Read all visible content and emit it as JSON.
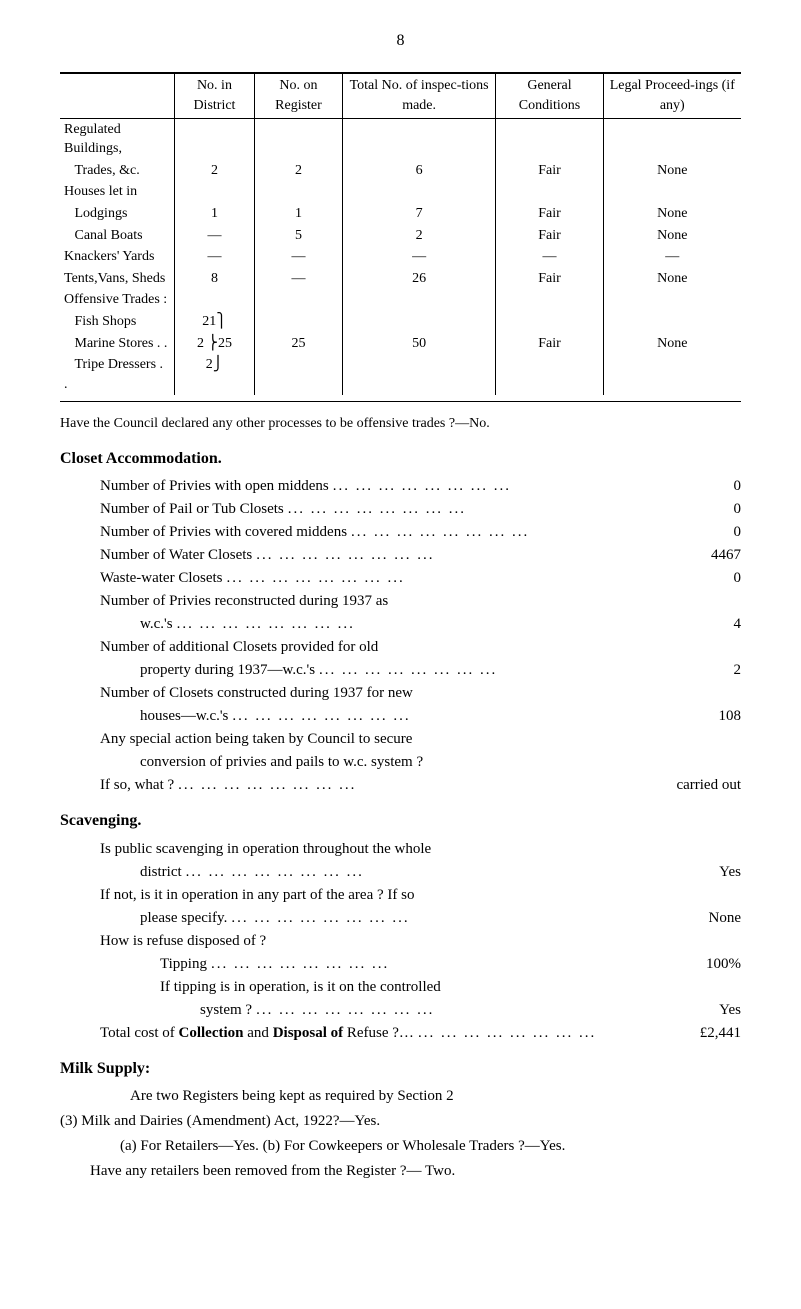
{
  "pageNumber": "8",
  "table": {
    "headers": [
      "",
      "No. in District",
      "No. on Register",
      "Total No. of inspec-tions made.",
      "General Conditions",
      "Legal Proceed-ings (if any)"
    ],
    "rows": [
      {
        "label": "Regulated Buildings,",
        "cells": [
          "",
          "",
          "",
          "",
          ""
        ]
      },
      {
        "label": "Trades, &c.",
        "indent": 1,
        "cells": [
          "2",
          "2",
          "6",
          "Fair",
          "None"
        ]
      },
      {
        "label": "Houses let in",
        "cells": [
          "",
          "",
          "",
          "",
          ""
        ]
      },
      {
        "label": "Lodgings",
        "indent": 1,
        "dots": true,
        "cells": [
          "1",
          "1",
          "7",
          "Fair",
          "None"
        ]
      },
      {
        "label": "Canal Boats",
        "indent": 1,
        "dots": true,
        "cells": [
          "—",
          "5",
          "2",
          "Fair",
          "None"
        ]
      },
      {
        "label": "Knackers' Yards",
        "cells": [
          "—",
          "—",
          "—",
          "—",
          "—"
        ]
      },
      {
        "label": "Tents,Vans, Sheds",
        "cells": [
          "8",
          "—",
          "26",
          "Fair",
          "None"
        ]
      },
      {
        "label": "Offensive Trades :",
        "cells": [
          "",
          "",
          "",
          "",
          ""
        ]
      },
      {
        "label": "Fish Shops",
        "indent": 1,
        "dots": true,
        "cells": [
          "21⎫",
          "",
          "",
          "",
          ""
        ]
      },
      {
        "label": "Marine Stores . .",
        "indent": 1,
        "cells": [
          "2 ⎬25",
          "25",
          "50",
          "Fair",
          "None"
        ]
      },
      {
        "label": "Tripe Dressers . .",
        "indent": 1,
        "cells": [
          "2⎭",
          "",
          "",
          "",
          ""
        ]
      }
    ],
    "footerNote": "Have the Council declared any other processes to be offensive trades ?—No."
  },
  "closetSection": {
    "title": "Closet Accommodation.",
    "items": [
      {
        "label": "Number of Privies with open middens",
        "value": "0"
      },
      {
        "label": "Number of Pail or Tub Closets",
        "value": "0"
      },
      {
        "label": "Number of Privies with covered middens",
        "value": "0"
      },
      {
        "label": "Number of Water Closets",
        "value": "4467"
      },
      {
        "label": "Waste-water Closets",
        "value": "0"
      },
      {
        "label": "Number of Privies reconstructed during 1937 as",
        "value": ""
      },
      {
        "label": "w.c.'s",
        "indent": true,
        "value": "4"
      },
      {
        "label": "Number of additional Closets provided for old",
        "value": ""
      },
      {
        "label": "property during 1937—w.c.'s",
        "indent": true,
        "value": "2"
      },
      {
        "label": "Number of Closets constructed during 1937 for new",
        "value": ""
      },
      {
        "label": "houses—w.c.'s",
        "indent": true,
        "value": "108"
      },
      {
        "label": "Any special action being taken by Council to secure",
        "value": ""
      },
      {
        "label": "conversion of privies and pails to w.c. system ?",
        "indent": true,
        "value": ""
      },
      {
        "label": "If so, what ?",
        "value": "carried out"
      }
    ]
  },
  "scavengingSection": {
    "title": "Scavenging.",
    "lines": [
      {
        "text": "Is public scavenging in operation throughout the whole"
      },
      {
        "text": "district",
        "indent": true,
        "value": "Yes"
      },
      {
        "text": "If not, is it in operation in any part of the area ? If so"
      },
      {
        "text": "please specify.",
        "indent": true,
        "value": "None"
      },
      {
        "text": "How is refuse disposed of ?"
      },
      {
        "text": "Tipping",
        "indent2": true,
        "value": "100%"
      },
      {
        "text": "If tipping is in operation, is it on the controlled",
        "indent2": true
      },
      {
        "text": "system ?",
        "indent3": true,
        "value": "Yes"
      },
      {
        "text_prefix": "Total cost of ",
        "bold1": "Collection",
        "mid": " and ",
        "bold2": "Disposal of",
        "suffix": " Refuse ?…",
        "value": "£2,441"
      }
    ]
  },
  "milkSection": {
    "title": "Milk Supply:",
    "para1_a": "Are two Registers being kept as required by Section 2",
    "para1_b": "(3) Milk and Dairies (Amendment) Act, 1922?—Yes.",
    "para2": "(a) For Retailers—Yes. (b) For Cowkeepers or Wholesale Traders ?—Yes.",
    "para3": "Have any retailers been removed from the Register ?— Two."
  }
}
